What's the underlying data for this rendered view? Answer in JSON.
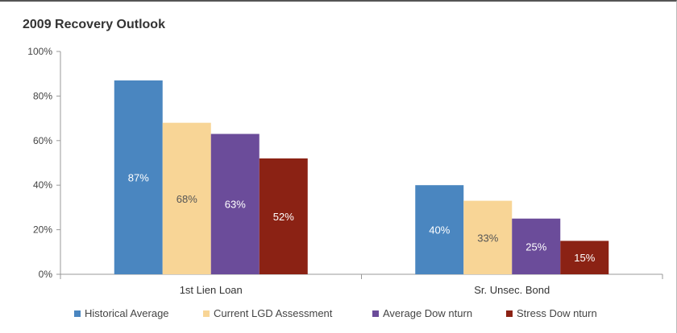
{
  "chart_data": {
    "type": "bar",
    "title": "2009 Recovery Outlook",
    "categories": [
      "1st Lien Loan",
      "Sr. Unsec. Bond"
    ],
    "series": [
      {
        "name": "Historical Average",
        "values": [
          87,
          40
        ],
        "labels": [
          "87%",
          "40%"
        ],
        "color": "#4A86C0",
        "label_color": "#ffffff"
      },
      {
        "name": "Current LGD Assessment",
        "values": [
          68,
          33
        ],
        "labels": [
          "68%",
          "33%"
        ],
        "color": "#F8D596",
        "label_color": "#555555"
      },
      {
        "name": "Average Dow nturn",
        "values": [
          63,
          25
        ],
        "labels": [
          "63%",
          "25%"
        ],
        "color": "#6B4C9A",
        "label_color": "#ffffff"
      },
      {
        "name": "Stress Dow nturn",
        "values": [
          52,
          15
        ],
        "labels": [
          "52%",
          "15%"
        ],
        "color": "#8B2214",
        "label_color": "#ffffff"
      }
    ],
    "ylim": [
      0,
      100
    ],
    "yticks": [
      0,
      20,
      40,
      60,
      80,
      100
    ],
    "ytick_labels": [
      "0%",
      "20%",
      "40%",
      "60%",
      "80%",
      "100%"
    ],
    "grid": false,
    "legend": "bottom"
  }
}
